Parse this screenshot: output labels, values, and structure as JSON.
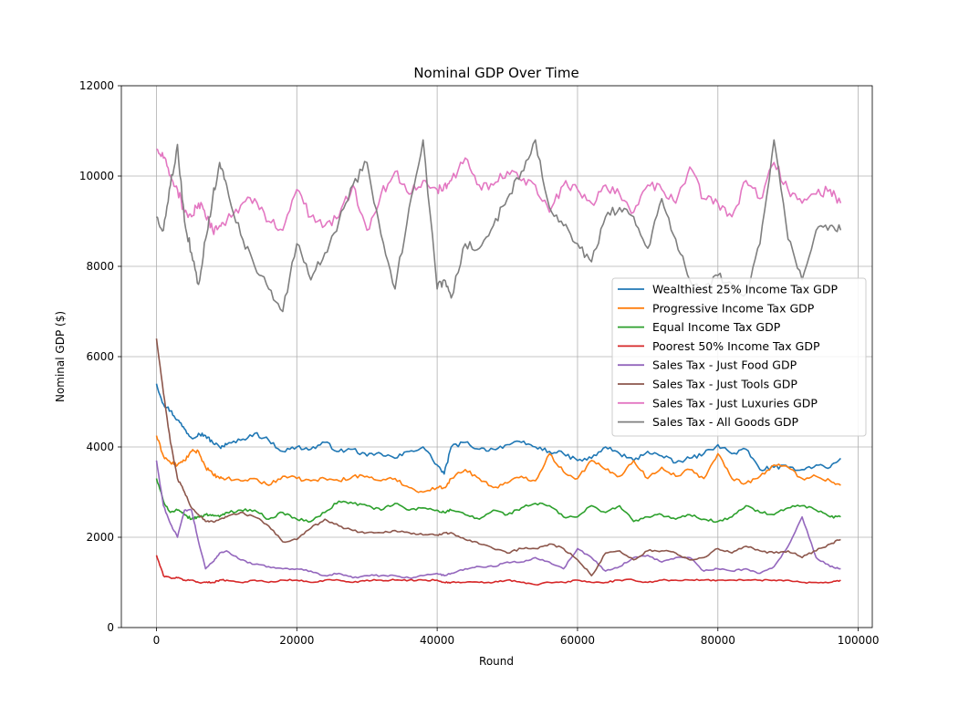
{
  "chart_data": {
    "type": "line",
    "title": "Nominal GDP Over Time",
    "xlabel": "Round",
    "ylabel": "Nominal GDP ($)",
    "xlim": [
      -5000,
      102000
    ],
    "ylim": [
      0,
      12000
    ],
    "xticks": [
      0,
      20000,
      40000,
      60000,
      80000,
      100000
    ],
    "yticks": [
      0,
      2000,
      4000,
      6000,
      8000,
      10000,
      12000
    ],
    "xtick_labels": [
      "0",
      "20000",
      "40000",
      "60000",
      "80000",
      "100000"
    ],
    "ytick_labels": [
      "0",
      "2000",
      "4000",
      "6000",
      "8000",
      "10000",
      "12000"
    ],
    "grid": true,
    "legend_position": "center-right",
    "x": [
      0,
      1000,
      2000,
      3000,
      4000,
      5000,
      6000,
      7000,
      8000,
      9000,
      10000,
      12000,
      14000,
      16000,
      18000,
      20000,
      22000,
      24000,
      26000,
      28000,
      30000,
      32000,
      34000,
      36000,
      38000,
      40000,
      41000,
      42000,
      44000,
      46000,
      48000,
      50000,
      52000,
      54000,
      56000,
      58000,
      60000,
      62000,
      64000,
      66000,
      68000,
      70000,
      72000,
      74000,
      76000,
      78000,
      80000,
      82000,
      84000,
      86000,
      88000,
      90000,
      92000,
      94000,
      96000,
      97500
    ],
    "series": [
      {
        "name": "Wealthiest 25% Income Tax GDP",
        "color": "#1f77b4",
        "values": [
          5400,
          4950,
          4800,
          4600,
          4400,
          4200,
          4300,
          4250,
          4100,
          4000,
          4050,
          4150,
          4300,
          4150,
          3900,
          4000,
          3950,
          4100,
          3900,
          3950,
          3800,
          3850,
          3750,
          3900,
          4000,
          3600,
          3400,
          4000,
          4100,
          3950,
          3950,
          4050,
          4100,
          4000,
          3900,
          3850,
          3700,
          3750,
          4000,
          3850,
          3700,
          3900,
          3800,
          3650,
          3750,
          3850,
          4050,
          3850,
          3950,
          3500,
          3550,
          3550,
          3500,
          3600,
          3550,
          3750
        ]
      },
      {
        "name": "Progressive Income Tax GDP",
        "color": "#ff7f0e",
        "values": [
          4250,
          3800,
          3650,
          3600,
          3700,
          3900,
          3900,
          3550,
          3400,
          3300,
          3300,
          3250,
          3300,
          3150,
          3350,
          3300,
          3250,
          3300,
          3250,
          3350,
          3350,
          3250,
          3300,
          3100,
          3000,
          3100,
          3100,
          3300,
          3500,
          3300,
          3100,
          3200,
          3350,
          3250,
          3850,
          3450,
          3300,
          3700,
          3500,
          3350,
          3700,
          3300,
          3550,
          3350,
          3500,
          3300,
          3850,
          3300,
          3200,
          3350,
          3600,
          3550,
          3300,
          3350,
          3250,
          3150
        ]
      },
      {
        "name": "Equal Income Tax GDP",
        "color": "#2ca02c",
        "values": [
          3300,
          2800,
          2550,
          2600,
          2500,
          2400,
          2450,
          2500,
          2500,
          2450,
          2550,
          2600,
          2600,
          2400,
          2550,
          2400,
          2350,
          2550,
          2800,
          2750,
          2700,
          2600,
          2750,
          2600,
          2650,
          2600,
          2550,
          2600,
          2500,
          2400,
          2600,
          2500,
          2650,
          2750,
          2700,
          2450,
          2450,
          2700,
          2550,
          2700,
          2350,
          2450,
          2500,
          2400,
          2500,
          2400,
          2350,
          2450,
          2700,
          2550,
          2500,
          2650,
          2700,
          2600,
          2450,
          2450
        ]
      },
      {
        "name": "Poorest 50% Income Tax GDP",
        "color": "#d62728",
        "values": [
          1600,
          1150,
          1100,
          1100,
          1050,
          1050,
          1000,
          1000,
          1000,
          1050,
          1050,
          1000,
          1050,
          1000,
          1050,
          1050,
          1000,
          1050,
          1050,
          1000,
          1050,
          1050,
          1050,
          1050,
          1050,
          1050,
          1000,
          1000,
          1000,
          1000,
          1000,
          1050,
          1000,
          950,
          1000,
          1000,
          1050,
          1000,
          1000,
          1050,
          1050,
          1000,
          1050,
          1050,
          1050,
          1050,
          1050,
          1050,
          1050,
          1050,
          1050,
          1050,
          1000,
          1000,
          1000,
          1050
        ]
      },
      {
        "name": "Sales Tax - Just Food GDP",
        "color": "#9467bd",
        "values": [
          3700,
          2700,
          2300,
          2000,
          2600,
          2600,
          1900,
          1300,
          1450,
          1650,
          1700,
          1500,
          1400,
          1350,
          1300,
          1300,
          1250,
          1150,
          1200,
          1100,
          1150,
          1150,
          1150,
          1100,
          1150,
          1200,
          1150,
          1200,
          1300,
          1350,
          1350,
          1450,
          1450,
          1550,
          1450,
          1300,
          1750,
          1550,
          1250,
          1350,
          1550,
          1600,
          1450,
          1550,
          1550,
          1250,
          1300,
          1250,
          1300,
          1200,
          1350,
          1800,
          2450,
          1550,
          1350,
          1300
        ]
      },
      {
        "name": "Sales Tax - Just Tools GDP",
        "color": "#8c564b",
        "values": [
          6400,
          5200,
          4100,
          3300,
          3000,
          2650,
          2500,
          2350,
          2350,
          2400,
          2450,
          2550,
          2450,
          2250,
          1900,
          1950,
          2200,
          2400,
          2250,
          2150,
          2100,
          2100,
          2150,
          2100,
          2050,
          2050,
          2100,
          2100,
          1950,
          1850,
          1750,
          1650,
          1750,
          1750,
          1850,
          1750,
          1500,
          1150,
          1650,
          1700,
          1500,
          1700,
          1700,
          1650,
          1500,
          1550,
          1750,
          1650,
          1800,
          1700,
          1650,
          1700,
          1550,
          1700,
          1850,
          1950
        ]
      },
      {
        "name": "Sales Tax - Just Luxuries GDP",
        "color": "#e377c2",
        "values": [
          10600,
          10400,
          10000,
          9700,
          9200,
          9100,
          9400,
          9100,
          8800,
          8900,
          9000,
          9350,
          9500,
          9000,
          8800,
          9700,
          9100,
          8900,
          9100,
          9800,
          8800,
          9600,
          10100,
          9600,
          9900,
          9700,
          9800,
          9900,
          10400,
          9800,
          9800,
          10100,
          9900,
          9800,
          9200,
          9800,
          9700,
          9400,
          9800,
          9600,
          9200,
          9800,
          9700,
          9400,
          10200,
          9500,
          9400,
          9100,
          9900,
          9500,
          10300,
          9700,
          9400,
          9600,
          9700,
          9400
        ]
      },
      {
        "name": "Sales Tax - All Goods GDP",
        "color": "#7f7f7f",
        "values": [
          9100,
          8800,
          9800,
          10700,
          9000,
          8300,
          7600,
          8600,
          9500,
          10300,
          9800,
          8700,
          8000,
          7500,
          7000,
          8500,
          7700,
          8300,
          9000,
          9800,
          10300,
          8700,
          7500,
          9300,
          10800,
          7500,
          7700,
          7300,
          8500,
          8400,
          8900,
          9500,
          10100,
          10800,
          9300,
          8900,
          8500,
          8100,
          9100,
          9300,
          9100,
          8400,
          9500,
          8600,
          7700,
          7500,
          7800,
          7600,
          7400,
          8500,
          10800,
          8600,
          7700,
          8800,
          8900,
          8800
        ]
      }
    ]
  }
}
